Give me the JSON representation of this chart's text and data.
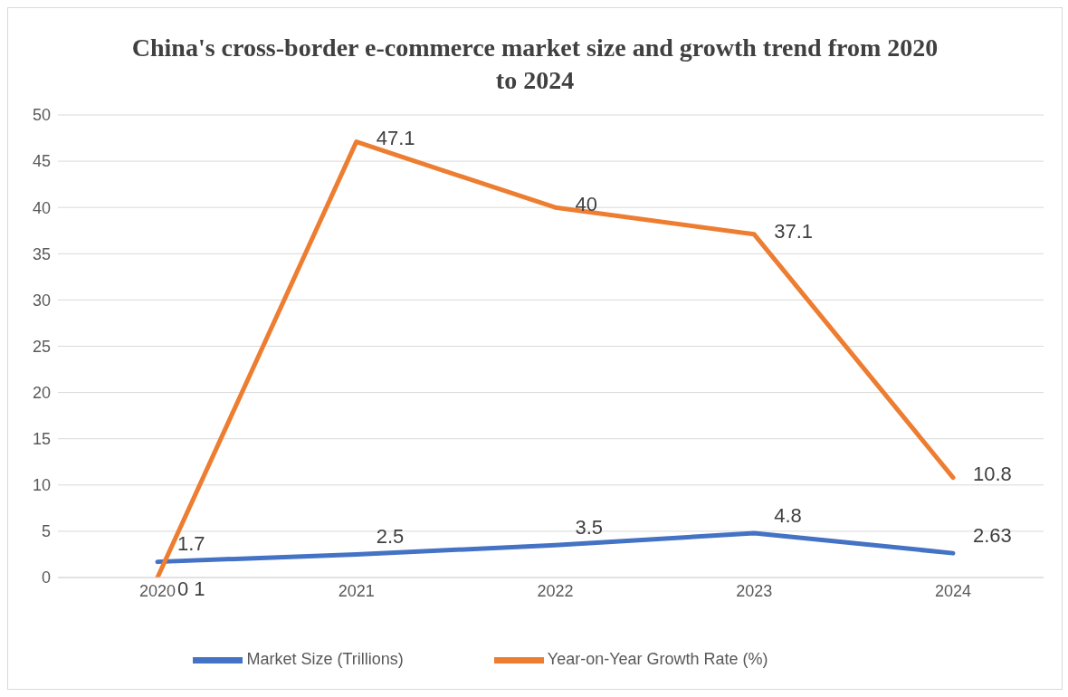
{
  "chart_data": {
    "type": "line",
    "title": "China's cross-border e-commerce market size and growth trend from 2020 to 2024",
    "categories": [
      "2020",
      "2021",
      "2022",
      "2023",
      "2024"
    ],
    "series": [
      {
        "name": "Market Size (Trillions)",
        "color": "#4472c4",
        "values": [
          1.7,
          2.5,
          3.5,
          4.8,
          2.63
        ],
        "value_labels": [
          "1.7",
          "2.5",
          "3.5",
          "4.8",
          "2.63"
        ]
      },
      {
        "name": "Year-on-Year Growth Rate (%)",
        "color": "#ed7d31",
        "values": [
          0,
          47.1,
          40,
          37.1,
          10.8
        ],
        "value_labels": [
          "0 1",
          "47.1",
          "40",
          "37.1",
          "10.8"
        ]
      }
    ],
    "ylim": [
      0,
      50
    ],
    "yticks": [
      0,
      5,
      10,
      15,
      20,
      25,
      30,
      35,
      40,
      45,
      50
    ],
    "grid": "y",
    "legend": "bottom",
    "marker": "none",
    "line_style": "solid"
  }
}
